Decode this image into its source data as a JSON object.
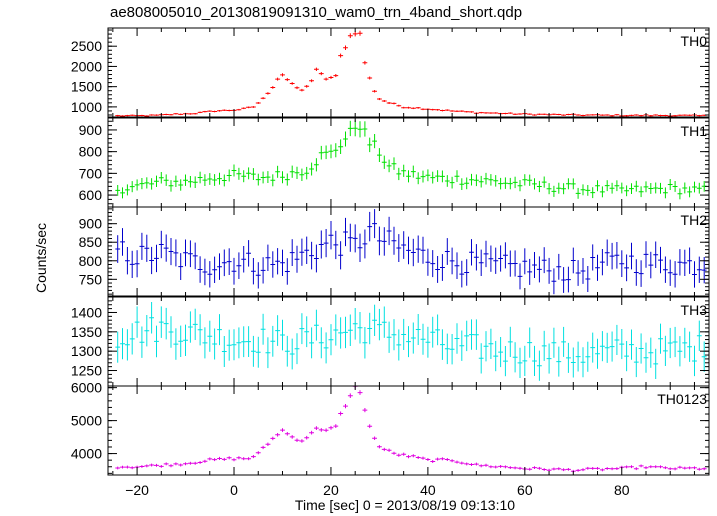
{
  "chart_data": {
    "type": "line",
    "title": "ae808005010_20130819091310_wam0_trn_4band_short.qdp",
    "xlabel": "Time [sec] 0 = 2013/08/19 09:13:10",
    "ylabel": "Counts/sec",
    "xlim": [
      -26,
      98
    ],
    "xticks": [
      -20,
      0,
      20,
      40,
      60,
      80
    ],
    "panels": [
      {
        "name": "TH0",
        "color": "#ff0000",
        "ylim": [
          750,
          2950
        ],
        "yticks": [
          1000,
          1500,
          2000,
          2500
        ],
        "errfrac": 0.022,
        "points": [
          [
            -24,
            780
          ],
          [
            -20,
            780
          ],
          [
            -16,
            790
          ],
          [
            -12,
            820
          ],
          [
            -8,
            840
          ],
          [
            -4,
            900
          ],
          [
            0,
            920
          ],
          [
            2,
            950
          ],
          [
            4,
            1000
          ],
          [
            6,
            1200
          ],
          [
            8,
            1500
          ],
          [
            9,
            1700
          ],
          [
            10,
            1800
          ],
          [
            12,
            1550
          ],
          [
            14,
            1400
          ],
          [
            16,
            1650
          ],
          [
            17,
            1900
          ],
          [
            19,
            1700
          ],
          [
            21,
            1750
          ],
          [
            22,
            2250
          ],
          [
            23,
            2500
          ],
          [
            24,
            2750
          ],
          [
            25,
            2850
          ],
          [
            26,
            2800
          ],
          [
            27,
            2100
          ],
          [
            28,
            1700
          ],
          [
            29,
            1400
          ],
          [
            30,
            1200
          ],
          [
            32,
            1100
          ],
          [
            35,
            1000
          ],
          [
            40,
            950
          ],
          [
            45,
            900
          ],
          [
            50,
            860
          ],
          [
            55,
            840
          ],
          [
            60,
            820
          ],
          [
            70,
            800
          ],
          [
            80,
            790
          ],
          [
            90,
            790
          ],
          [
            97,
            780
          ]
        ]
      },
      {
        "name": "TH1",
        "color": "#00e000",
        "ylim": [
          545,
          955
        ],
        "yticks": [
          600,
          700,
          800,
          900
        ],
        "errfrac": 0.04,
        "points": [
          [
            -24,
            630
          ],
          [
            -20,
            640
          ],
          [
            -15,
            660
          ],
          [
            -10,
            660
          ],
          [
            -5,
            680
          ],
          [
            0,
            690
          ],
          [
            5,
            680
          ],
          [
            10,
            690
          ],
          [
            15,
            720
          ],
          [
            18,
            780
          ],
          [
            20,
            790
          ],
          [
            22,
            840
          ],
          [
            24,
            880
          ],
          [
            25,
            920
          ],
          [
            26,
            930
          ],
          [
            27,
            880
          ],
          [
            28,
            840
          ],
          [
            30,
            800
          ],
          [
            32,
            730
          ],
          [
            35,
            700
          ],
          [
            40,
            680
          ],
          [
            50,
            670
          ],
          [
            60,
            650
          ],
          [
            70,
            630
          ],
          [
            80,
            620
          ],
          [
            90,
            630
          ],
          [
            97,
            620
          ]
        ]
      },
      {
        "name": "TH2",
        "color": "#0000cc",
        "ylim": [
          705,
          945
        ],
        "yticks": [
          750,
          800,
          850,
          900
        ],
        "errfrac": 0.045,
        "points": [
          [
            -24,
            830
          ],
          [
            -20,
            810
          ],
          [
            -15,
            820
          ],
          [
            -10,
            800
          ],
          [
            -5,
            790
          ],
          [
            0,
            800
          ],
          [
            5,
            790
          ],
          [
            10,
            790
          ],
          [
            15,
            820
          ],
          [
            20,
            850
          ],
          [
            25,
            840
          ],
          [
            28,
            880
          ],
          [
            30,
            860
          ],
          [
            35,
            830
          ],
          [
            40,
            810
          ],
          [
            50,
            790
          ],
          [
            60,
            780
          ],
          [
            70,
            770
          ],
          [
            80,
            800
          ],
          [
            90,
            790
          ],
          [
            97,
            790
          ]
        ]
      },
      {
        "name": "TH3",
        "color": "#00e0e0",
        "ylim": [
          1210,
          1440
        ],
        "yticks": [
          1250,
          1300,
          1350,
          1400
        ],
        "errfrac": 0.03,
        "points": [
          [
            -24,
            1340
          ],
          [
            -20,
            1350
          ],
          [
            -15,
            1360
          ],
          [
            -10,
            1350
          ],
          [
            -5,
            1340
          ],
          [
            0,
            1330
          ],
          [
            5,
            1330
          ],
          [
            10,
            1320
          ],
          [
            15,
            1330
          ],
          [
            20,
            1340
          ],
          [
            25,
            1360
          ],
          [
            30,
            1350
          ],
          [
            35,
            1340
          ],
          [
            40,
            1330
          ],
          [
            45,
            1310
          ],
          [
            50,
            1310
          ],
          [
            55,
            1300
          ],
          [
            60,
            1300
          ],
          [
            70,
            1290
          ],
          [
            80,
            1300
          ],
          [
            90,
            1300
          ],
          [
            97,
            1310
          ]
        ]
      },
      {
        "name": "TH0123",
        "color": "#e000e0",
        "ylim": [
          3350,
          6050
        ],
        "yticks": [
          4000,
          5000,
          6000
        ],
        "errfrac": 0.012,
        "points": [
          [
            -24,
            3600
          ],
          [
            -20,
            3600
          ],
          [
            -15,
            3650
          ],
          [
            -10,
            3700
          ],
          [
            -5,
            3800
          ],
          [
            0,
            3850
          ],
          [
            3,
            3850
          ],
          [
            5,
            4000
          ],
          [
            7,
            4300
          ],
          [
            9,
            4600
          ],
          [
            10,
            4700
          ],
          [
            12,
            4500
          ],
          [
            14,
            4400
          ],
          [
            16,
            4600
          ],
          [
            17,
            4800
          ],
          [
            19,
            4700
          ],
          [
            21,
            4800
          ],
          [
            22,
            5200
          ],
          [
            23,
            5400
          ],
          [
            24,
            5800
          ],
          [
            25,
            6000
          ],
          [
            26,
            5900
          ],
          [
            27,
            5300
          ],
          [
            28,
            4800
          ],
          [
            29,
            4500
          ],
          [
            30,
            4200
          ],
          [
            33,
            4000
          ],
          [
            37,
            3900
          ],
          [
            40,
            3800
          ],
          [
            45,
            3800
          ],
          [
            50,
            3650
          ],
          [
            55,
            3600
          ],
          [
            60,
            3550
          ],
          [
            70,
            3500
          ],
          [
            80,
            3550
          ],
          [
            85,
            3600
          ],
          [
            90,
            3550
          ],
          [
            97,
            3550
          ]
        ]
      }
    ]
  }
}
